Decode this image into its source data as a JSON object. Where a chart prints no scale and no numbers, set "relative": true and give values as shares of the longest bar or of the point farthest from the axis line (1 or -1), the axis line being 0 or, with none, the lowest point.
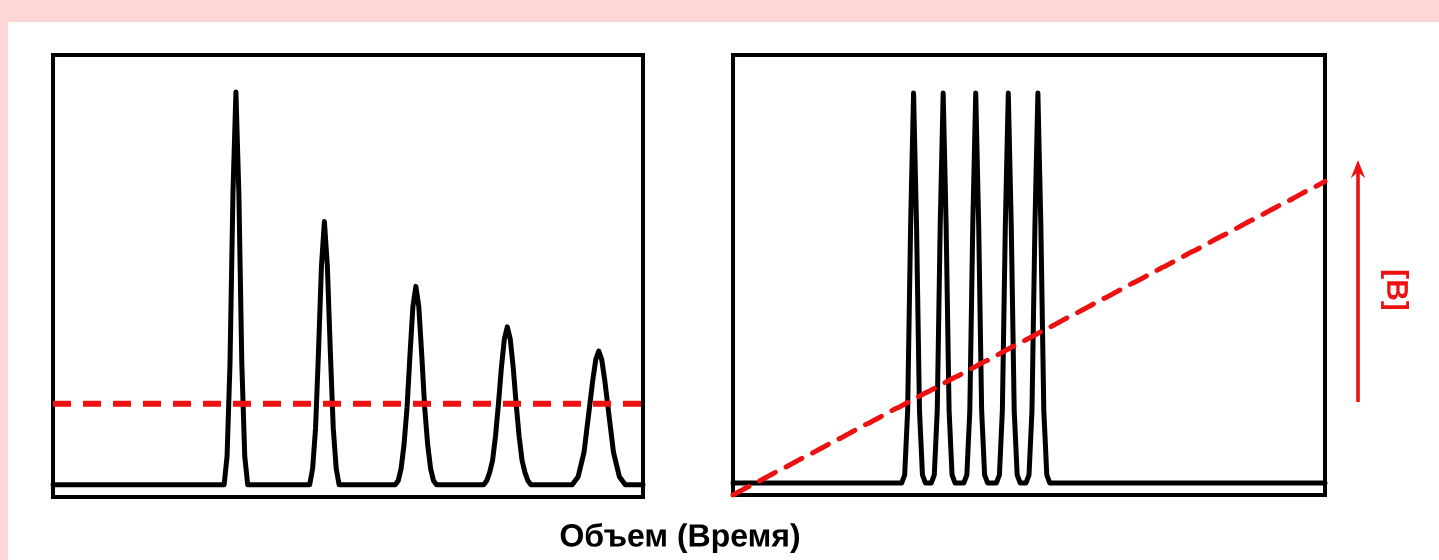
{
  "chart_data": [
    {
      "type": "line",
      "relative": true,
      "xlabel": "Объем (Время)",
      "line_style": "solid",
      "categories": [
        null,
        null,
        null,
        null,
        null,
        null,
        null,
        null,
        null,
        null,
        null,
        null,
        null,
        null,
        null,
        null,
        null,
        null,
        null,
        null,
        null,
        null,
        null,
        null,
        null,
        null,
        null,
        null,
        null,
        null,
        null,
        null,
        null,
        null,
        null,
        null,
        null,
        null,
        null,
        null,
        null,
        null,
        null,
        null,
        null,
        null,
        null,
        null,
        null,
        null,
        null,
        null,
        null,
        null,
        null,
        null,
        null,
        null,
        null,
        null,
        null,
        null,
        null,
        null,
        null,
        null,
        null,
        null,
        null,
        null,
        null,
        null,
        null,
        null,
        null,
        null,
        null,
        null,
        null,
        null,
        null,
        null,
        null,
        null,
        null,
        null,
        null,
        null,
        null,
        null,
        null,
        null,
        null,
        null,
        null,
        null,
        null,
        null,
        null,
        null,
        null,
        null,
        null,
        null,
        null,
        null,
        null,
        null,
        null,
        null,
        null,
        null,
        null,
        null,
        null,
        null,
        null,
        null,
        null,
        null,
        null,
        null,
        null,
        null,
        null,
        null,
        null,
        null,
        null,
        null,
        null,
        null,
        null,
        null,
        null,
        null,
        null,
        null,
        null,
        null,
        null,
        null,
        null,
        null,
        null,
        null,
        null,
        null,
        null,
        null,
        null,
        null,
        null,
        null,
        null,
        null,
        null,
        null,
        null,
        null,
        null,
        null,
        null,
        null,
        null,
        null,
        null,
        null,
        null,
        null,
        null,
        null,
        null,
        null,
        null,
        null,
        null,
        null,
        null,
        null,
        null,
        null,
        null,
        null,
        null,
        null,
        null,
        null,
        null,
        null,
        null,
        null,
        null,
        null,
        null,
        null,
        null,
        null,
        null,
        null,
        null
      ],
      "series": [
        {
          "color": "#000000",
          "values": [
            0.03,
            0.03,
            0.03,
            0.03,
            0.03,
            0.03,
            0.03,
            0.03,
            0.03,
            0.03,
            0.03,
            0.03,
            0.03,
            0.03,
            0.03,
            0.03,
            0.03,
            0.03,
            0.03,
            0.03,
            0.03,
            0.03,
            0.03,
            0.03,
            0.03,
            0.03,
            0.03,
            0.03,
            0.03,
            0.03,
            0.03,
            0.03,
            0.03,
            0.03,
            0.03,
            0.03,
            0.03,
            0.03,
            0.03,
            0.03,
            0.03,
            0.03,
            0.03,
            0.03,
            0.03,
            0.03,
            0.03,
            0.03,
            0.03,
            0.03,
            0.03,
            0.03,
            0.03,
            0.03,
            0.03,
            0.03,
            0.03,
            0.03,
            0.03,
            0.1,
            0.33,
            0.75,
            1,
            0.75,
            0.33,
            0.1,
            0.03,
            0.03,
            0.03,
            0.03,
            0.03,
            0.03,
            0.03,
            0.03,
            0.03,
            0.03,
            0.03,
            0.03,
            0.03,
            0.03,
            0.03,
            0.03,
            0.03,
            0.03,
            0.03,
            0.03,
            0.03,
            0.03,
            0.07,
            0.17,
            0.36,
            0.57,
            0.68,
            0.57,
            0.36,
            0.17,
            0.07,
            0.03,
            0.03,
            0.03,
            0.03,
            0.03,
            0.03,
            0.03,
            0.03,
            0.03,
            0.03,
            0.03,
            0.03,
            0.03,
            0.03,
            0.03,
            0.03,
            0.03,
            0.03,
            0.03,
            0.03,
            0.04,
            0.07,
            0.13,
            0.22,
            0.35,
            0.47,
            0.52,
            0.47,
            0.35,
            0.22,
            0.13,
            0.07,
            0.04,
            0.03,
            0.03,
            0.03,
            0.03,
            0.03,
            0.03,
            0.03,
            0.03,
            0.03,
            0.03,
            0.03,
            0.03,
            0.03,
            0.03,
            0.03,
            0.03,
            0.03,
            0.04,
            0.06,
            0.09,
            0.15,
            0.23,
            0.32,
            0.39,
            0.42,
            0.39,
            0.32,
            0.23,
            0.15,
            0.09,
            0.06,
            0.04,
            0.03,
            0.03,
            0.03,
            0.03,
            0.03,
            0.03,
            0.03,
            0.03,
            0.03,
            0.03,
            0.03,
            0.03,
            0.03,
            0.03,
            0.03,
            0.04,
            0.05,
            0.08,
            0.11,
            0.17,
            0.23,
            0.29,
            0.34,
            0.36,
            0.34,
            0.29,
            0.23,
            0.17,
            0.11,
            0.08,
            0.05,
            0.04,
            0.03,
            0.03,
            0.03,
            0.03,
            0.03,
            0.03,
            0.03
          ]
        }
      ],
      "ref_lines": [
        {
          "axis": "y",
          "value": 0.23,
          "color": "#ee1111",
          "line_style": "dashed"
        }
      ]
    },
    {
      "type": "line",
      "relative": true,
      "line_style": "solid",
      "annotations": [
        "[B]"
      ],
      "categories": [
        null,
        null,
        null,
        null,
        null,
        null,
        null,
        null,
        null,
        null,
        null,
        null,
        null,
        null,
        null,
        null,
        null,
        null,
        null,
        null,
        null,
        null,
        null,
        null,
        null,
        null,
        null,
        null,
        null,
        null,
        null,
        null,
        null,
        null,
        null,
        null,
        null,
        null,
        null,
        null,
        null,
        null,
        null,
        null,
        null,
        null,
        null,
        null,
        null,
        null,
        null,
        null,
        null,
        null,
        null,
        null,
        null,
        null,
        null,
        null,
        null,
        null,
        null,
        null,
        null,
        null,
        null,
        null,
        null,
        null,
        null,
        null,
        null,
        null,
        null,
        null,
        null,
        null,
        null,
        null,
        null,
        null,
        null,
        null,
        null,
        null,
        null,
        null,
        null,
        null,
        null,
        null,
        null,
        null,
        null,
        null,
        null,
        null,
        null,
        null,
        null,
        null,
        null,
        null,
        null,
        null,
        null,
        null,
        null,
        null,
        null,
        null,
        null,
        null,
        null,
        null,
        null,
        null,
        null,
        null,
        null,
        null,
        null,
        null,
        null,
        null,
        null,
        null,
        null,
        null,
        null,
        null,
        null,
        null,
        null,
        null,
        null,
        null,
        null,
        null,
        null,
        null,
        null,
        null,
        null,
        null,
        null,
        null,
        null,
        null,
        null,
        null,
        null,
        null,
        null,
        null,
        null,
        null,
        null,
        null,
        null,
        null,
        null,
        null,
        null,
        null,
        null,
        null,
        null,
        null,
        null,
        null,
        null,
        null,
        null,
        null,
        null,
        null,
        null,
        null,
        null,
        null,
        null,
        null,
        null,
        null,
        null,
        null,
        null,
        null,
        null,
        null,
        null,
        null,
        null,
        null,
        null,
        null,
        null,
        null,
        null
      ],
      "series": [
        {
          "color": "#000000",
          "values": [
            0.03,
            0.03,
            0.03,
            0.03,
            0.03,
            0.03,
            0.03,
            0.03,
            0.03,
            0.03,
            0.03,
            0.03,
            0.03,
            0.03,
            0.03,
            0.03,
            0.03,
            0.03,
            0.03,
            0.03,
            0.03,
            0.03,
            0.03,
            0.03,
            0.03,
            0.03,
            0.03,
            0.03,
            0.03,
            0.03,
            0.03,
            0.03,
            0.03,
            0.03,
            0.03,
            0.03,
            0.03,
            0.03,
            0.03,
            0.03,
            0.03,
            0.03,
            0.03,
            0.03,
            0.03,
            0.03,
            0.03,
            0.03,
            0.03,
            0.03,
            0.03,
            0.03,
            0.03,
            0.03,
            0.03,
            0.03,
            0.03,
            0.03,
            0.05,
            0.21,
            0.67,
            1,
            0.67,
            0.21,
            0.05,
            0.03,
            0.03,
            0.03,
            0.05,
            0.21,
            0.67,
            1,
            0.67,
            0.21,
            0.05,
            0.03,
            0.03,
            0.03,
            0.03,
            0.05,
            0.21,
            0.67,
            1,
            0.67,
            0.21,
            0.05,
            0.03,
            0.03,
            0.03,
            0.03,
            0.05,
            0.21,
            0.67,
            1,
            0.67,
            0.21,
            0.05,
            0.03,
            0.03,
            0.03,
            0.05,
            0.21,
            0.67,
            1,
            0.67,
            0.21,
            0.05,
            0.03,
            0.03,
            0.03,
            0.03,
            0.03,
            0.03,
            0.03,
            0.03,
            0.03,
            0.03,
            0.03,
            0.03,
            0.03,
            0.03,
            0.03,
            0.03,
            0.03,
            0.03,
            0.03,
            0.03,
            0.03,
            0.03,
            0.03,
            0.03,
            0.03,
            0.03,
            0.03,
            0.03,
            0.03,
            0.03,
            0.03,
            0.03,
            0.03,
            0.03,
            0.03,
            0.03,
            0.03,
            0.03,
            0.03,
            0.03,
            0.03,
            0.03,
            0.03,
            0.03,
            0.03,
            0.03,
            0.03,
            0.03,
            0.03,
            0.03,
            0.03,
            0.03,
            0.03,
            0.03,
            0.03,
            0.03,
            0.03,
            0.03,
            0.03,
            0.03,
            0.03,
            0.03,
            0.03,
            0.03,
            0.03,
            0.03,
            0.03,
            0.03,
            0.03,
            0.03,
            0.03,
            0.03,
            0.03,
            0.03,
            0.03,
            0.03,
            0.03,
            0.03,
            0.03,
            0.03,
            0.03,
            0.03,
            0.03,
            0.03,
            0.03,
            0.03,
            0.03,
            0.03,
            0.03,
            0.03,
            0.03,
            0.03,
            0.03,
            0.03
          ]
        },
        {
          "color": "#ee1111",
          "line_style": "dashed",
          "values": [
            0,
            0.004,
            0.008,
            0.012,
            0.016,
            0.02,
            0.023,
            0.027,
            0.031,
            0.035,
            0.039,
            0.043,
            0.047,
            0.051,
            0.055,
            0.059,
            0.062,
            0.066,
            0.07,
            0.074,
            0.078,
            0.082,
            0.086,
            0.09,
            0.094,
            0.098,
            0.101,
            0.105,
            0.109,
            0.113,
            0.117,
            0.121,
            0.125,
            0.129,
            0.133,
            0.137,
            0.14,
            0.144,
            0.148,
            0.152,
            0.156,
            0.16,
            0.164,
            0.168,
            0.172,
            0.176,
            0.179,
            0.183,
            0.187,
            0.191,
            0.195,
            0.199,
            0.203,
            0.207,
            0.211,
            0.215,
            0.218,
            0.222,
            0.226,
            0.23,
            0.234,
            0.238,
            0.242,
            0.246,
            0.25,
            0.254,
            0.257,
            0.261,
            0.265,
            0.269,
            0.273,
            0.277,
            0.281,
            0.285,
            0.289,
            0.293,
            0.296,
            0.3,
            0.304,
            0.308,
            0.312,
            0.316,
            0.32,
            0.324,
            0.328,
            0.332,
            0.335,
            0.339,
            0.343,
            0.347,
            0.351,
            0.355,
            0.359,
            0.363,
            0.367,
            0.371,
            0.374,
            0.378,
            0.382,
            0.386,
            0.39,
            0.394,
            0.398,
            0.402,
            0.406,
            0.41,
            0.413,
            0.417,
            0.421,
            0.425,
            0.429,
            0.433,
            0.437,
            0.441,
            0.445,
            0.449,
            0.452,
            0.456,
            0.46,
            0.464,
            0.468,
            0.472,
            0.476,
            0.48,
            0.484,
            0.488,
            0.491,
            0.495,
            0.499,
            0.503,
            0.507,
            0.511,
            0.515,
            0.519,
            0.523,
            0.527,
            0.53,
            0.534,
            0.538,
            0.542,
            0.546,
            0.55,
            0.554,
            0.558,
            0.562,
            0.566,
            0.569,
            0.573,
            0.577,
            0.581,
            0.585,
            0.589,
            0.593,
            0.597,
            0.601,
            0.605,
            0.608,
            0.612,
            0.616,
            0.62,
            0.624,
            0.628,
            0.632,
            0.636,
            0.64,
            0.644,
            0.647,
            0.651,
            0.655,
            0.659,
            0.663,
            0.667,
            0.671,
            0.675,
            0.679,
            0.683,
            0.686,
            0.69,
            0.694,
            0.698,
            0.702,
            0.706,
            0.71,
            0.714,
            0.718,
            0.722,
            0.725,
            0.729,
            0.733,
            0.737,
            0.741,
            0.745,
            0.749,
            0.753,
            0.757,
            0.761,
            0.764,
            0.768,
            0.772,
            0.776,
            0.78
          ]
        }
      ]
    }
  ]
}
